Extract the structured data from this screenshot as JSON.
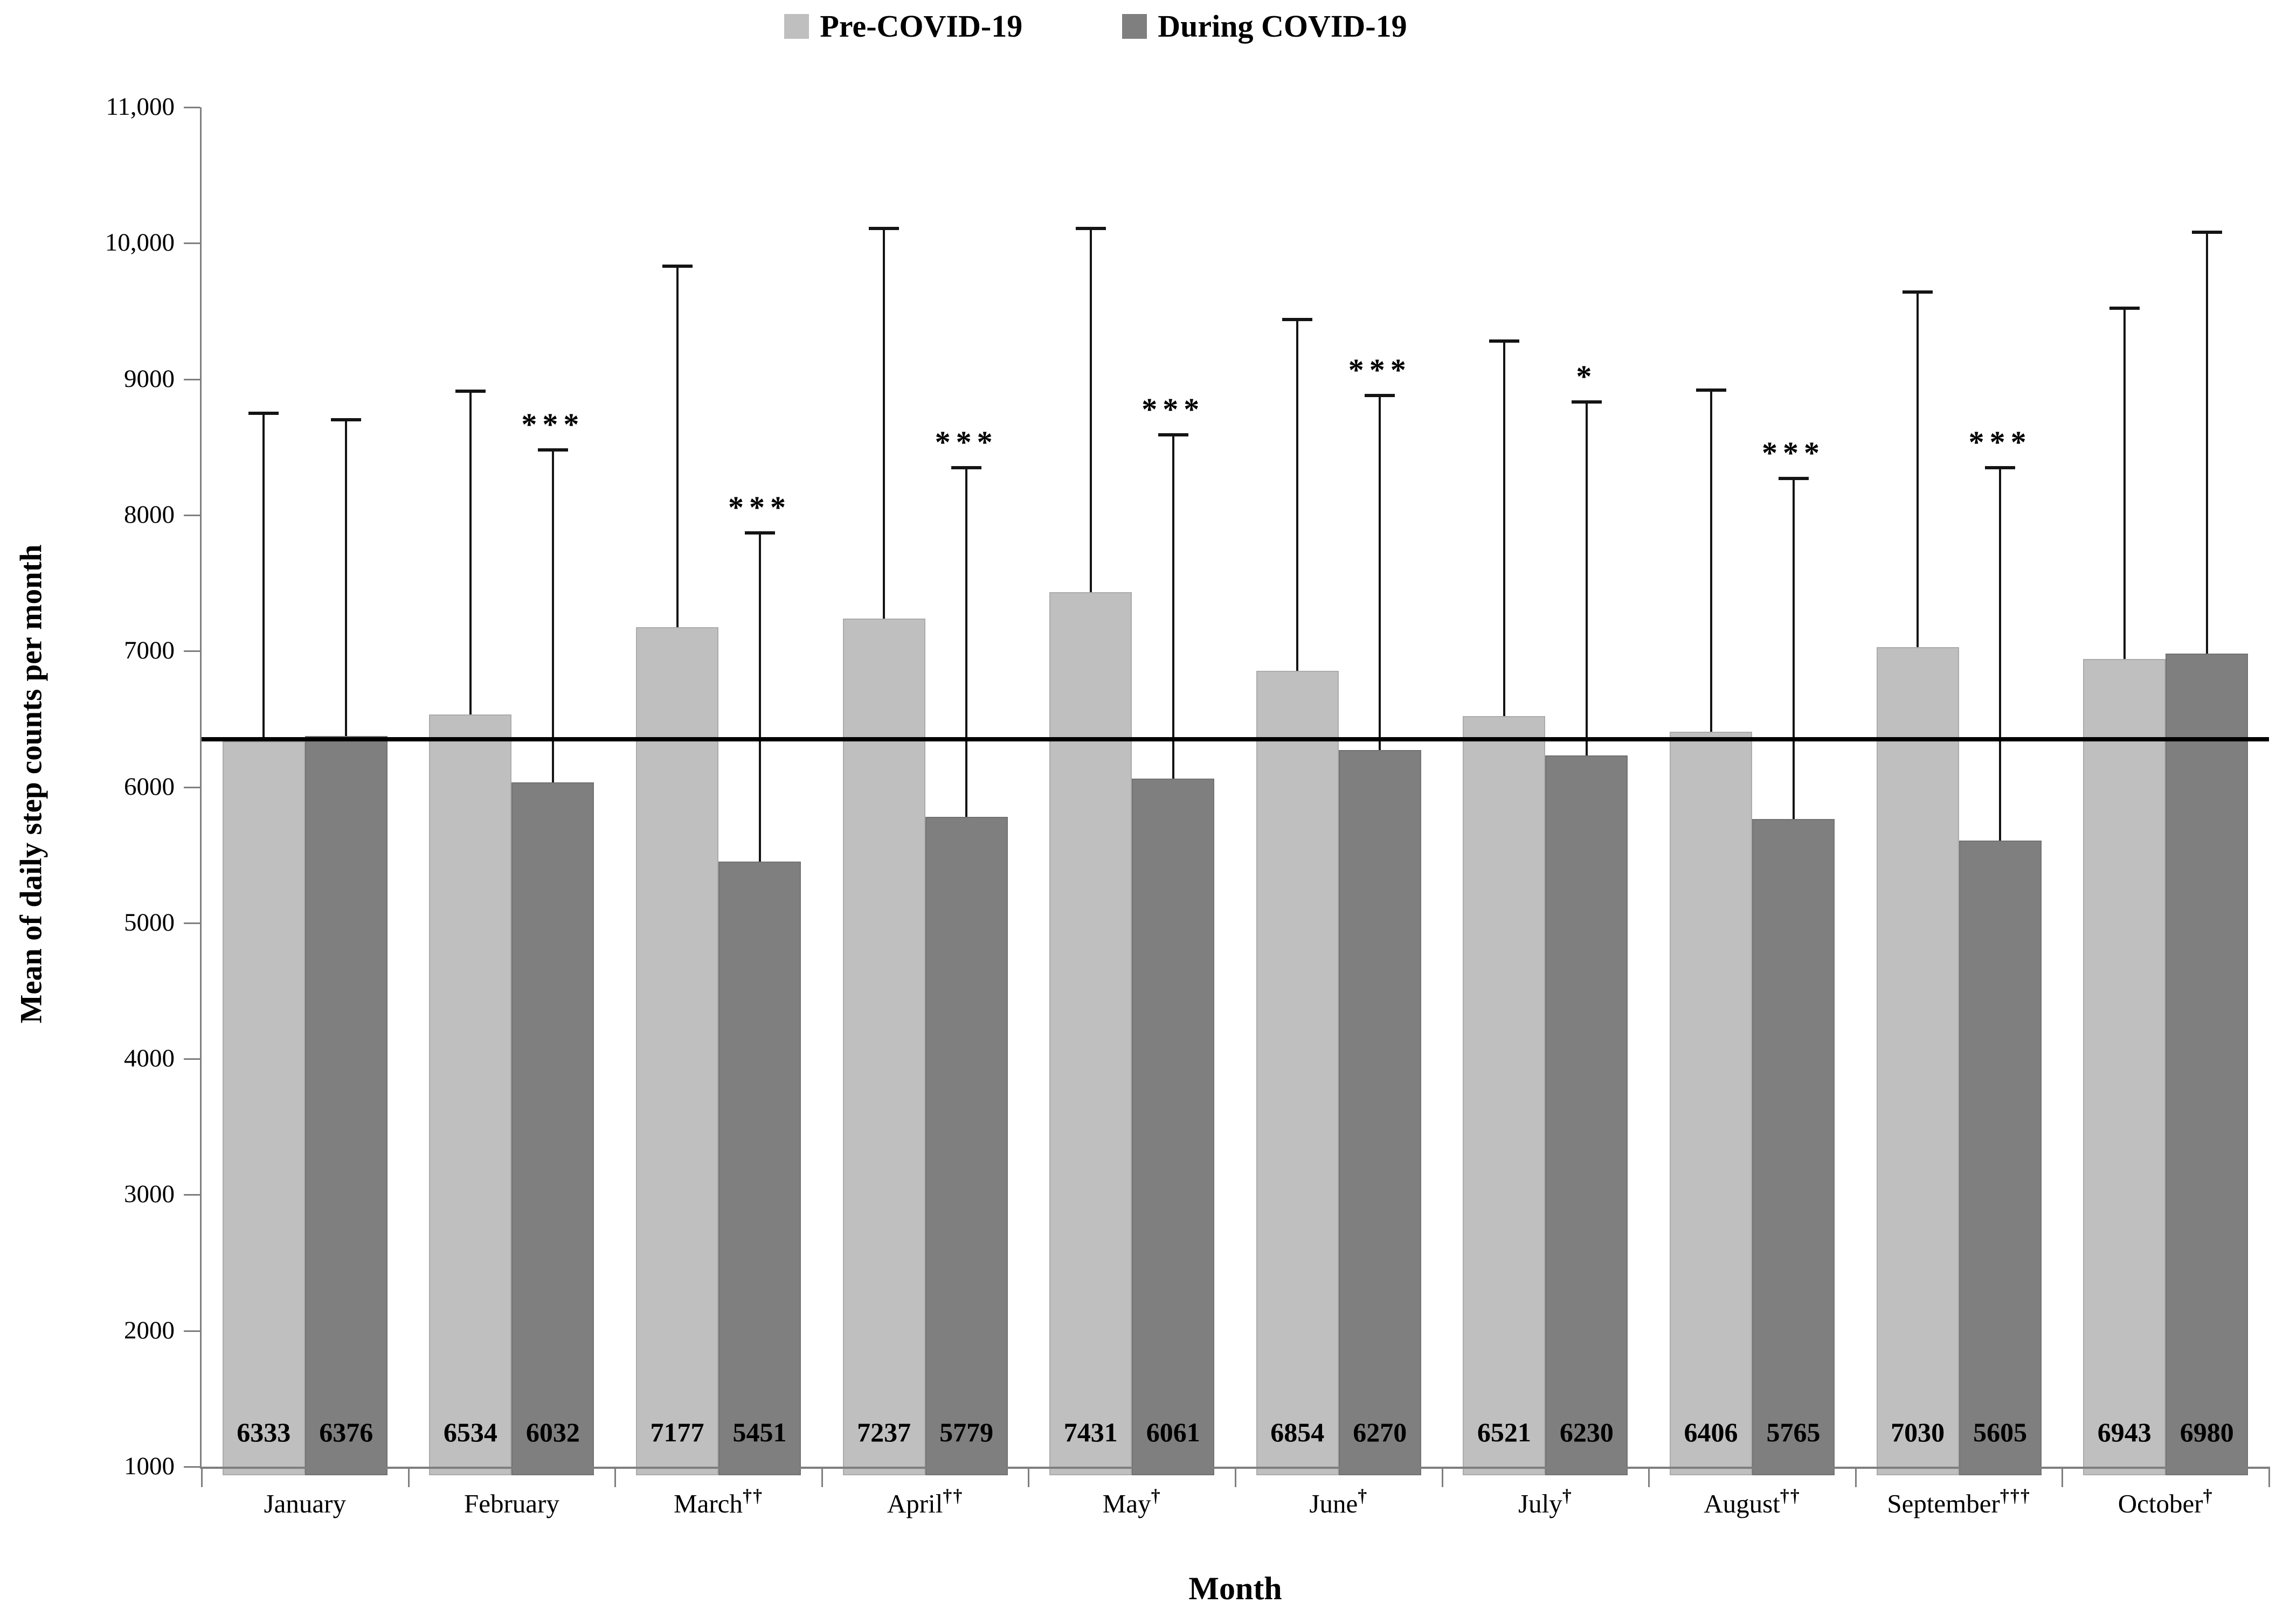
{
  "legend": {
    "items": [
      {
        "label": "Pre-COVID-19",
        "color": "#bfbfbf"
      },
      {
        "label": "During COVID-19",
        "color": "#7f7f7f"
      }
    ]
  },
  "y_axis": {
    "title": "Mean of daily step counts per month",
    "ticks": [
      {
        "value": 11000,
        "label": "11,000"
      },
      {
        "value": 10000,
        "label": "10,000"
      },
      {
        "value": 9000,
        "label": "9000"
      },
      {
        "value": 8000,
        "label": "8000"
      },
      {
        "value": 7000,
        "label": "7000"
      },
      {
        "value": 6000,
        "label": "6000"
      },
      {
        "value": 5000,
        "label": "5000"
      },
      {
        "value": 4000,
        "label": "4000"
      },
      {
        "value": 3000,
        "label": "3000"
      },
      {
        "value": 2000,
        "label": "2000"
      },
      {
        "value": 1000,
        "label": "1000"
      }
    ]
  },
  "x_axis": {
    "title": "Month"
  },
  "chart_data": {
    "type": "bar",
    "title": "",
    "xlabel": "Month",
    "ylabel": "Mean of daily step counts per month",
    "ylim": [
      1000,
      11000
    ],
    "grid": false,
    "legend_position": "top-center",
    "categories": [
      "January",
      "February",
      "March",
      "April",
      "May",
      "June",
      "July",
      "August",
      "September",
      "October"
    ],
    "category_daggers": [
      "",
      "",
      "††",
      "††",
      "†",
      "†",
      "†",
      "††",
      "†††",
      "†"
    ],
    "series": [
      {
        "name": "Pre-COVID-19",
        "color": "#bfbfbf",
        "values": [
          6333,
          6534,
          7177,
          7237,
          7431,
          6854,
          6521,
          6406,
          7030,
          6943
        ],
        "error_bar_tops": [
          8750,
          8910,
          9830,
          10110,
          10110,
          9440,
          9280,
          8920,
          9640,
          9520
        ]
      },
      {
        "name": "During COVID-19",
        "color": "#7f7f7f",
        "values": [
          6376,
          6032,
          5451,
          5779,
          6061,
          6270,
          6230,
          5765,
          5605,
          6980
        ],
        "error_bar_tops": [
          8700,
          8480,
          7870,
          8350,
          8590,
          8880,
          8830,
          8270,
          8350,
          10080
        ]
      }
    ],
    "significance": [
      "",
      "***",
      "***",
      "***",
      "***",
      "***",
      "*",
      "***",
      "***",
      ""
    ],
    "significance_on_series": "During COVID-19",
    "reference_line": {
      "value": 6350
    }
  }
}
